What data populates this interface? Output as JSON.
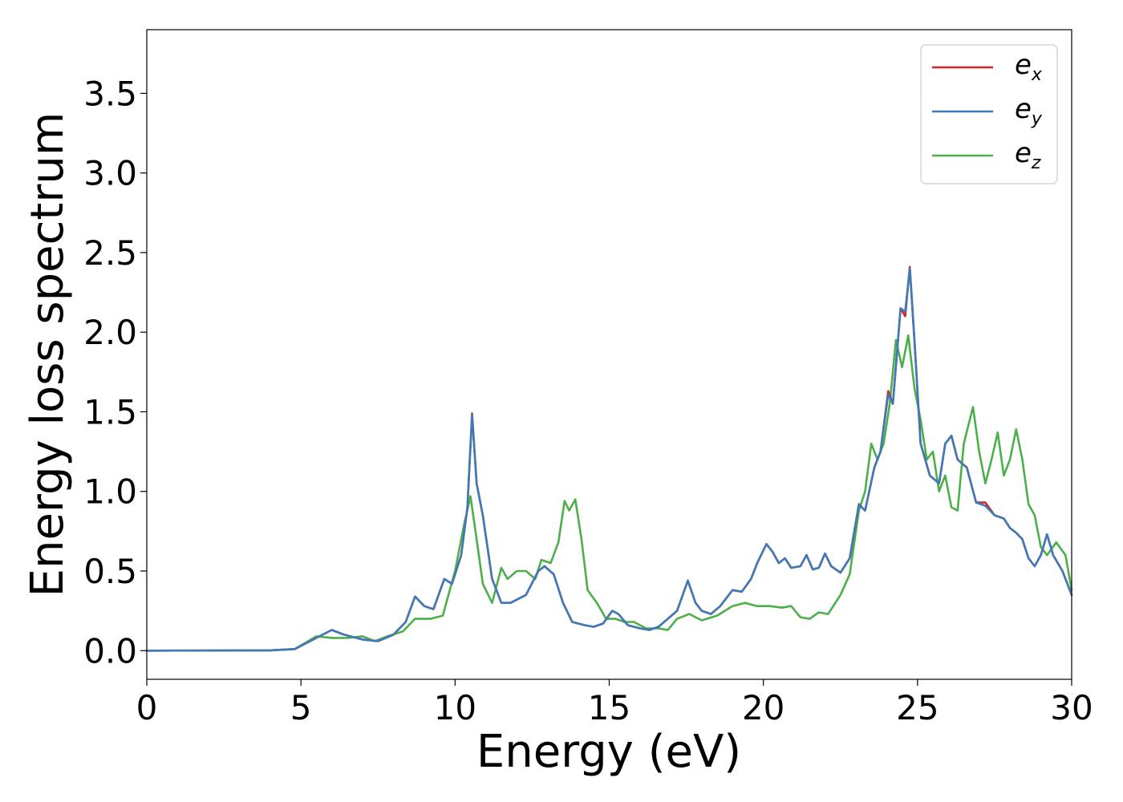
{
  "chart_data": {
    "type": "line",
    "xlabel": "Energy (eV)",
    "ylabel": "Energy loss spectrum",
    "xlim": [
      0,
      30
    ],
    "ylim": [
      -0.18,
      3.9
    ],
    "xticks": [
      0,
      5,
      10,
      15,
      20,
      25,
      30
    ],
    "xtick_labels": [
      "0",
      "5",
      "10",
      "15",
      "20",
      "25",
      "30"
    ],
    "yticks": [
      0.0,
      0.5,
      1.0,
      1.5,
      2.0,
      2.5,
      3.0,
      3.5
    ],
    "ytick_labels": [
      "0.0",
      "0.5",
      "1.0",
      "1.5",
      "2.0",
      "2.5",
      "3.0",
      "3.5"
    ],
    "grid": false,
    "legend_position": "top-right",
    "series": [
      {
        "name": "e_x",
        "legend_base": "e",
        "legend_sub": "x",
        "color": "#d62728",
        "x": [
          0,
          4,
          4.8,
          5.3,
          5.7,
          6.0,
          6.4,
          7.0,
          7.5,
          8.0,
          8.4,
          8.7,
          9.0,
          9.3,
          9.65,
          9.9,
          10.2,
          10.4,
          10.55,
          10.7,
          10.9,
          11.2,
          11.5,
          11.8,
          12.3,
          12.7,
          12.9,
          13.2,
          13.5,
          13.8,
          14.2,
          14.5,
          14.8,
          15.1,
          15.3,
          15.6,
          16.0,
          16.3,
          16.6,
          16.9,
          17.2,
          17.55,
          17.8,
          18.0,
          18.3,
          18.6,
          19.0,
          19.3,
          19.6,
          19.8,
          20.1,
          20.3,
          20.5,
          20.7,
          20.9,
          21.2,
          21.4,
          21.6,
          21.8,
          22.0,
          22.2,
          22.5,
          22.8,
          23.1,
          23.3,
          23.6,
          23.8,
          24.05,
          24.2,
          24.45,
          24.6,
          24.75,
          24.9,
          25.1,
          25.4,
          25.7,
          25.9,
          26.1,
          26.3,
          26.6,
          26.9,
          27.2,
          27.5,
          27.8,
          28.0,
          28.2,
          28.4,
          28.6,
          28.8,
          29.0,
          29.2,
          29.4,
          29.7,
          30.0
        ],
        "y": [
          0.0,
          0.002,
          0.01,
          0.06,
          0.1,
          0.13,
          0.1,
          0.07,
          0.06,
          0.1,
          0.18,
          0.34,
          0.28,
          0.26,
          0.45,
          0.42,
          0.6,
          0.9,
          1.49,
          1.05,
          0.85,
          0.45,
          0.3,
          0.3,
          0.35,
          0.5,
          0.53,
          0.48,
          0.3,
          0.18,
          0.16,
          0.15,
          0.17,
          0.25,
          0.23,
          0.16,
          0.14,
          0.13,
          0.15,
          0.2,
          0.25,
          0.44,
          0.3,
          0.25,
          0.23,
          0.28,
          0.38,
          0.37,
          0.45,
          0.55,
          0.67,
          0.62,
          0.55,
          0.58,
          0.52,
          0.53,
          0.6,
          0.51,
          0.52,
          0.61,
          0.53,
          0.49,
          0.58,
          0.92,
          0.88,
          1.15,
          1.25,
          1.63,
          1.55,
          2.15,
          2.1,
          2.41,
          1.95,
          1.3,
          1.1,
          1.05,
          1.3,
          1.35,
          1.2,
          1.15,
          0.93,
          0.93,
          0.85,
          0.83,
          0.77,
          0.74,
          0.7,
          0.58,
          0.53,
          0.6,
          0.73,
          0.6,
          0.5,
          0.35
        ]
      },
      {
        "name": "e_y",
        "legend_base": "e",
        "legend_sub": "y",
        "color": "#3d7ab8",
        "x": [
          0,
          4,
          4.8,
          5.3,
          5.7,
          6.0,
          6.4,
          7.0,
          7.5,
          8.0,
          8.4,
          8.7,
          9.0,
          9.3,
          9.65,
          9.9,
          10.2,
          10.4,
          10.55,
          10.7,
          10.9,
          11.2,
          11.5,
          11.8,
          12.3,
          12.7,
          12.9,
          13.2,
          13.5,
          13.8,
          14.2,
          14.5,
          14.8,
          15.1,
          15.3,
          15.6,
          16.0,
          16.3,
          16.6,
          16.9,
          17.2,
          17.55,
          17.8,
          18.0,
          18.3,
          18.6,
          19.0,
          19.3,
          19.6,
          19.8,
          20.1,
          20.3,
          20.5,
          20.7,
          20.9,
          21.2,
          21.4,
          21.6,
          21.8,
          22.0,
          22.2,
          22.5,
          22.8,
          23.1,
          23.3,
          23.6,
          23.8,
          24.05,
          24.2,
          24.45,
          24.6,
          24.75,
          24.9,
          25.1,
          25.4,
          25.7,
          25.9,
          26.1,
          26.3,
          26.6,
          26.9,
          27.2,
          27.5,
          27.8,
          28.0,
          28.2,
          28.4,
          28.6,
          28.8,
          29.0,
          29.2,
          29.4,
          29.7,
          30.0
        ],
        "y": [
          0.0,
          0.002,
          0.01,
          0.06,
          0.1,
          0.13,
          0.1,
          0.07,
          0.06,
          0.1,
          0.18,
          0.34,
          0.28,
          0.26,
          0.45,
          0.42,
          0.6,
          0.9,
          1.48,
          1.05,
          0.85,
          0.45,
          0.3,
          0.3,
          0.35,
          0.5,
          0.53,
          0.48,
          0.3,
          0.18,
          0.16,
          0.15,
          0.17,
          0.25,
          0.23,
          0.16,
          0.14,
          0.13,
          0.15,
          0.2,
          0.25,
          0.44,
          0.3,
          0.25,
          0.23,
          0.28,
          0.38,
          0.37,
          0.45,
          0.55,
          0.67,
          0.62,
          0.55,
          0.58,
          0.52,
          0.53,
          0.6,
          0.51,
          0.52,
          0.61,
          0.53,
          0.49,
          0.58,
          0.92,
          0.88,
          1.15,
          1.25,
          1.61,
          1.55,
          2.15,
          2.13,
          2.4,
          1.95,
          1.3,
          1.1,
          1.05,
          1.3,
          1.35,
          1.2,
          1.15,
          0.93,
          0.91,
          0.85,
          0.83,
          0.77,
          0.74,
          0.7,
          0.58,
          0.53,
          0.6,
          0.73,
          0.6,
          0.5,
          0.35
        ]
      },
      {
        "name": "e_z",
        "legend_base": "e",
        "legend_sub": "z",
        "color": "#4daf4a",
        "x": [
          0,
          4,
          4.8,
          5.5,
          6.0,
          6.5,
          7.0,
          7.4,
          7.8,
          8.3,
          8.7,
          9.2,
          9.6,
          10.0,
          10.3,
          10.5,
          10.7,
          10.9,
          11.2,
          11.5,
          11.7,
          12.0,
          12.3,
          12.6,
          12.8,
          13.1,
          13.35,
          13.55,
          13.7,
          13.9,
          14.1,
          14.3,
          14.6,
          14.9,
          15.2,
          15.5,
          15.8,
          16.2,
          16.6,
          16.9,
          17.2,
          17.6,
          18.0,
          18.5,
          19.0,
          19.4,
          19.8,
          20.2,
          20.6,
          20.9,
          21.2,
          21.5,
          21.8,
          22.1,
          22.5,
          22.8,
          23.1,
          23.3,
          23.5,
          23.7,
          23.9,
          24.1,
          24.3,
          24.5,
          24.7,
          24.9,
          25.1,
          25.3,
          25.5,
          25.7,
          25.9,
          26.1,
          26.3,
          26.5,
          26.8,
          27.0,
          27.2,
          27.4,
          27.6,
          27.8,
          28.0,
          28.2,
          28.4,
          28.6,
          28.8,
          29.0,
          29.2,
          29.5,
          29.8,
          30.0
        ],
        "y": [
          0.0,
          0.002,
          0.01,
          0.09,
          0.08,
          0.08,
          0.09,
          0.06,
          0.09,
          0.12,
          0.2,
          0.2,
          0.22,
          0.5,
          0.8,
          0.97,
          0.7,
          0.42,
          0.3,
          0.52,
          0.45,
          0.5,
          0.5,
          0.45,
          0.57,
          0.55,
          0.68,
          0.94,
          0.88,
          0.95,
          0.7,
          0.38,
          0.3,
          0.2,
          0.2,
          0.18,
          0.18,
          0.14,
          0.14,
          0.13,
          0.2,
          0.23,
          0.19,
          0.22,
          0.28,
          0.3,
          0.28,
          0.28,
          0.27,
          0.28,
          0.21,
          0.2,
          0.24,
          0.23,
          0.35,
          0.48,
          0.88,
          1.0,
          1.3,
          1.2,
          1.3,
          1.55,
          1.95,
          1.78,
          1.98,
          1.65,
          1.45,
          1.2,
          1.25,
          1.0,
          1.1,
          0.9,
          0.88,
          1.3,
          1.53,
          1.25,
          1.05,
          1.2,
          1.37,
          1.1,
          1.2,
          1.39,
          1.2,
          0.92,
          0.85,
          0.65,
          0.6,
          0.68,
          0.6,
          0.38
        ]
      }
    ]
  }
}
